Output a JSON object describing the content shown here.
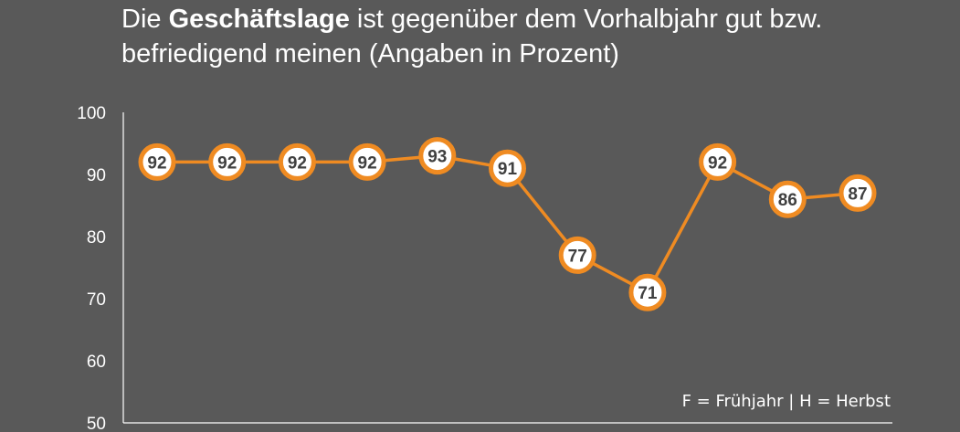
{
  "title": {
    "prefix": "Die ",
    "bold": "Geschäftslage",
    "rest_line1": " ist gegenüber dem Vorhalbjahr gut bzw.",
    "line2": "befriedigend meinen (Angaben in Prozent)"
  },
  "note": "F = Frühjahr | H = Herbst",
  "colors": {
    "background": "#595959",
    "line": "#ef8b22",
    "marker_fill": "#ffffff",
    "label_text": "#404040",
    "axis": "#ffffff"
  },
  "chart_data": {
    "type": "line",
    "title": "Die Geschäftslage ist gegenüber dem Vorhalbjahr gut bzw. befriedigend meinen (Angaben in Prozent)",
    "xlabel": "",
    "ylabel": "",
    "ylim": [
      50,
      100
    ],
    "yticks": [
      50,
      60,
      70,
      80,
      90,
      100
    ],
    "grid": false,
    "series": [
      {
        "values": [
          92,
          92,
          92,
          92,
          93,
          91,
          77,
          71,
          92,
          86,
          87
        ],
        "labels": [
          "92",
          "92",
          "92",
          "92",
          "93",
          "91",
          "77",
          "71",
          "92",
          "86",
          "87"
        ]
      }
    ]
  }
}
